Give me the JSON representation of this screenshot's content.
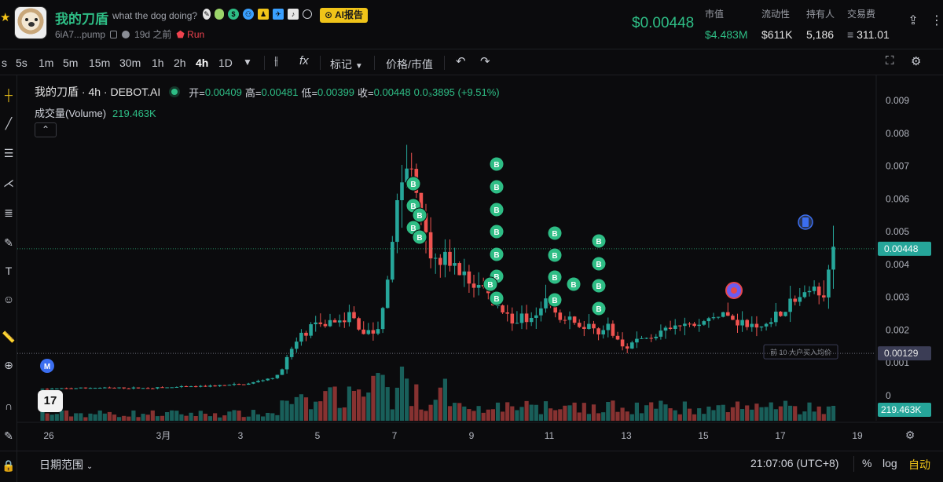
{
  "header": {
    "token_name": "我的刀盾",
    "token_subtitle": "what the dog doing?",
    "ai_button": "AI报告",
    "address": "6iA7...pump",
    "age": "19d 之前",
    "run_label": "Run",
    "price": "$0.00448",
    "stats": [
      {
        "label": "市值",
        "value": "$4.483M",
        "color": "green"
      },
      {
        "label": "流动性",
        "value": "$611K"
      },
      {
        "label": "持有人",
        "value": "5,186"
      },
      {
        "label": "交易费",
        "value": "311.01"
      }
    ]
  },
  "toolbar": {
    "timeframes": [
      "s",
      "5s",
      "1m",
      "5m",
      "15m",
      "30m",
      "1h",
      "2h",
      "4h",
      "1D"
    ],
    "active_timeframe": "4h",
    "indicators_label": "fx",
    "marks_label": "标记",
    "price_mcap_label": "价格/市值"
  },
  "legend": {
    "symbol": "我的刀盾 · 4h · DEBOT.AI",
    "open_label": "开=",
    "open": "0.00409",
    "high_label": "高=",
    "high": "0.00481",
    "low_label": "低=",
    "low": "0.00399",
    "close_label": "收=",
    "close": "0.00448",
    "change": "0.0₃3895 (+9.51%)",
    "volume_label": "成交量(Volume)",
    "volume": "219.463K"
  },
  "chart_data": {
    "type": "candlestick",
    "y_ticks": [
      "0.009",
      "0.008",
      "0.007",
      "0.006",
      "0.005",
      "0.004",
      "0.003",
      "0.002",
      "0.001",
      "0"
    ],
    "ylim": [
      0,
      0.0093
    ],
    "x_ticks": [
      "26",
      "3月",
      "3",
      "5",
      "7",
      "9",
      "11",
      "13",
      "15",
      "17",
      "19"
    ],
    "current_price_label": "0.00448",
    "avg_line_label": "0.00129",
    "avg_line_value": 0.00129,
    "avg_line_caption": "前 10 大户买入均价",
    "volume_label": "219.463K",
    "buy_marker_label": "B",
    "m_marker_label": "M",
    "accent_up": "#26a69a",
    "accent_down": "#ef5350"
  },
  "bottom": {
    "date_range": "日期范围",
    "time": "21:07:06 (UTC+8)",
    "percent": "%",
    "log": "log",
    "auto": "自动"
  }
}
